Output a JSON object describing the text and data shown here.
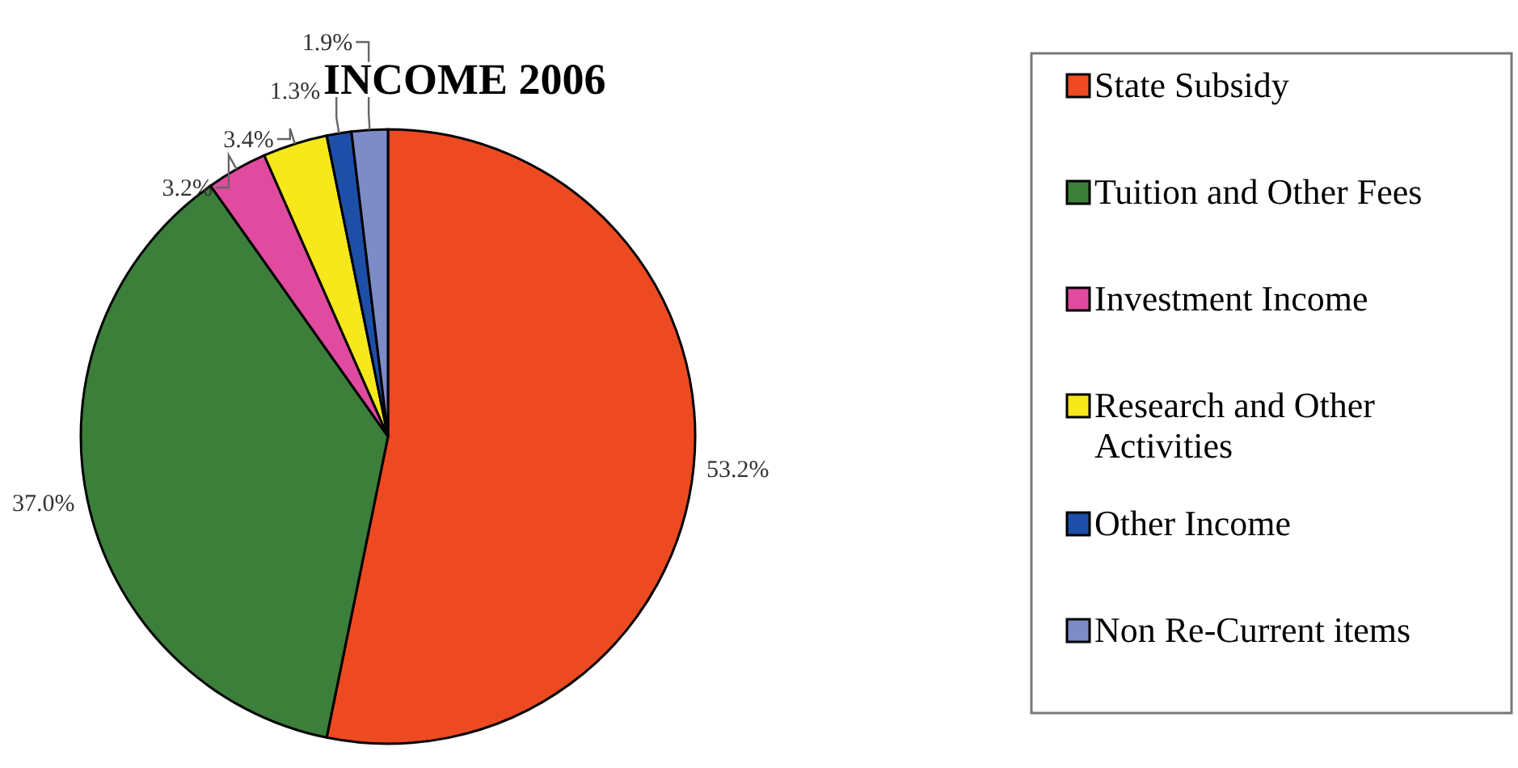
{
  "chart_data": {
    "type": "pie",
    "title": "INCOME 2006",
    "categories": [
      "State Subsidy",
      "Tuition and Other Fees",
      "Investment Income",
      "Research and Other Activities",
      "Other Income",
      "Non Re-Current items"
    ],
    "values": [
      53.2,
      37.0,
      3.2,
      3.4,
      1.3,
      1.9
    ],
    "value_labels": [
      "53.2%",
      "37.0%",
      "3.2%",
      "3.4%",
      "1.3%",
      "1.9%"
    ],
    "colors": [
      "#ee4a22",
      "#3b7f3a",
      "#e04a9f",
      "#f6e81a",
      "#1d4fa8",
      "#7d8cc6"
    ],
    "legend": "right"
  }
}
